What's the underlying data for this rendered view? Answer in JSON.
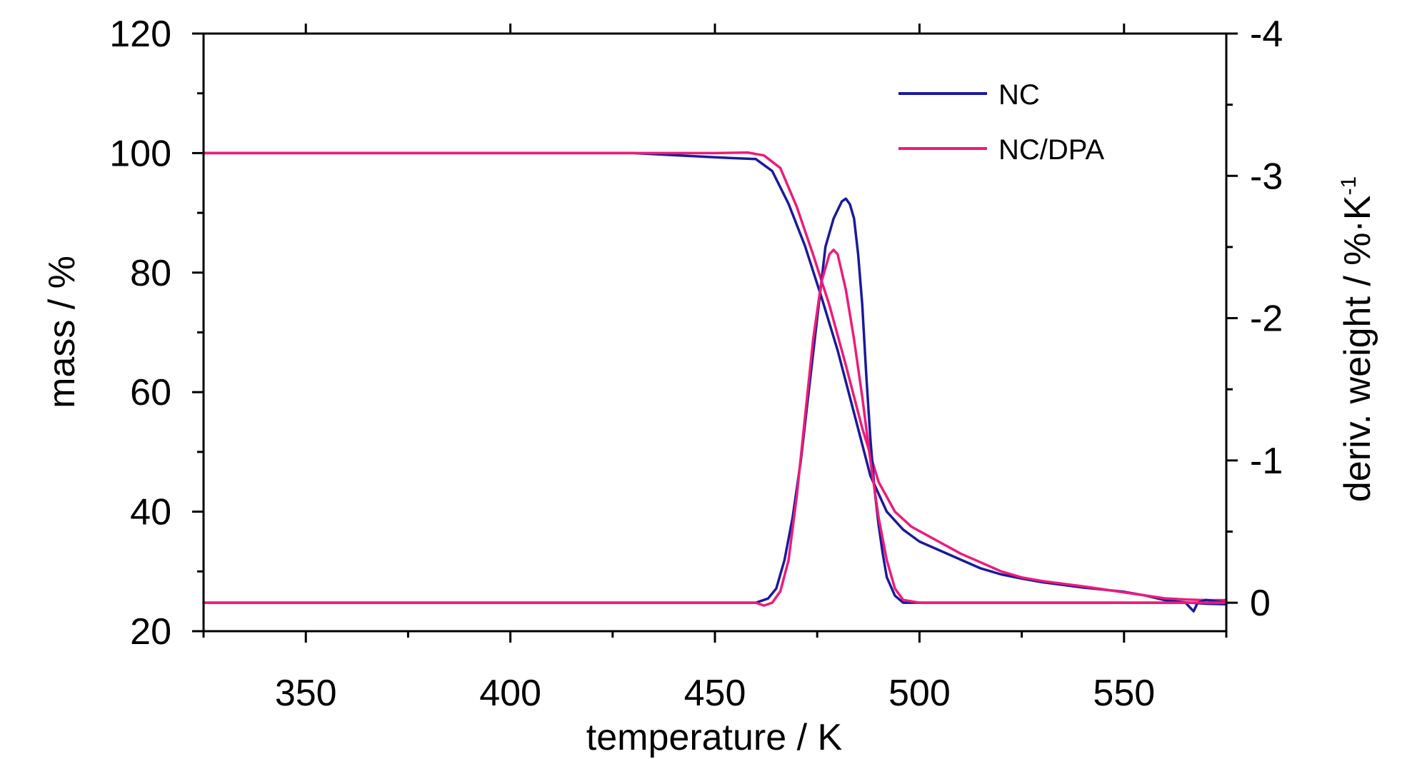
{
  "chart_data": {
    "type": "line",
    "xlabel": "temperature / K",
    "ylabel_left": "mass / %",
    "ylabel_right_main": "deriv. weight / %·K",
    "ylabel_right_sup": "-1",
    "xlim": [
      325,
      575
    ],
    "ylim_left": [
      20,
      120
    ],
    "ylim_right": [
      0.2,
      -4
    ],
    "x_ticks": [
      350,
      400,
      450,
      500,
      550
    ],
    "x_tick_labels": [
      "350",
      "400",
      "450",
      "500",
      "550"
    ],
    "y_left_ticks": [
      20,
      40,
      60,
      80,
      100,
      120
    ],
    "y_left_tick_labels": [
      "20",
      "40",
      "60",
      "80",
      "100",
      "120"
    ],
    "y_right_ticks": [
      0,
      -1,
      -2,
      -3,
      -4
    ],
    "y_right_tick_labels": [
      "0",
      "-1",
      "-2",
      "-3",
      "-4"
    ],
    "legend_position": "top-right",
    "series": [
      {
        "name": "NC",
        "color": "#1a1a9c",
        "axis": "left",
        "kind": "mass",
        "x": [
          325,
          350,
          400,
          430,
          450,
          460,
          464,
          468,
          472,
          476,
          480,
          484,
          488,
          492,
          496,
          500,
          505,
          510,
          515,
          520,
          525,
          530,
          540,
          550,
          555,
          560,
          565,
          570,
          575
        ],
        "y": [
          100,
          100,
          100,
          100,
          99.3,
          99.0,
          97.0,
          91.5,
          84.5,
          76.0,
          67.0,
          56.5,
          46.0,
          40.0,
          37.0,
          35.0,
          33.5,
          32.0,
          30.5,
          29.5,
          28.8,
          28.2,
          27.3,
          26.6,
          26.0,
          25.2,
          24.8,
          24.6,
          24.5
        ]
      },
      {
        "name": "NC/DPA",
        "color": "#ee1b7a",
        "axis": "left",
        "kind": "mass",
        "x": [
          325,
          350,
          400,
          430,
          450,
          458,
          462,
          466,
          470,
          474,
          478,
          482,
          486,
          490,
          494,
          498,
          502,
          506,
          510,
          515,
          520,
          525,
          530,
          540,
          550,
          560,
          565,
          570,
          575
        ],
        "y": [
          100,
          100,
          100,
          100,
          100,
          100.1,
          99.6,
          97.5,
          91.0,
          83.0,
          74.5,
          64.5,
          54.0,
          45.0,
          40.0,
          37.5,
          36.0,
          34.5,
          33.0,
          31.5,
          30.0,
          29.0,
          28.4,
          27.5,
          26.5,
          25.5,
          25.3,
          25.2,
          25.2
        ]
      },
      {
        "name": "NC",
        "color": "#1a1a9c",
        "axis": "right",
        "kind": "derivative",
        "x": [
          325,
          350,
          400,
          450,
          460,
          463,
          465,
          467,
          469,
          471,
          473,
          475,
          477,
          479,
          481,
          482,
          483,
          484,
          485,
          486,
          487,
          488,
          489,
          490,
          491,
          492,
          494,
          496,
          500,
          520,
          550,
          565,
          567,
          568,
          570,
          575
        ],
        "y": [
          0.0,
          0.0,
          0.0,
          0.0,
          0.0,
          -0.03,
          -0.1,
          -0.3,
          -0.6,
          -1.0,
          -1.5,
          -2.0,
          -2.5,
          -2.7,
          -2.82,
          -2.84,
          -2.8,
          -2.7,
          -2.45,
          -2.1,
          -1.6,
          -1.15,
          -0.8,
          -0.55,
          -0.35,
          -0.18,
          -0.05,
          0.0,
          0.0,
          0.0,
          0.0,
          0.0,
          0.06,
          0.0,
          -0.02,
          0.0
        ]
      },
      {
        "name": "NC/DPA",
        "color": "#ee1b7a",
        "axis": "right",
        "kind": "derivative",
        "x": [
          325,
          350,
          400,
          450,
          460,
          462,
          464,
          466,
          468,
          470,
          472,
          474,
          476,
          478,
          479,
          480,
          482,
          484,
          486,
          488,
          490,
          492,
          494,
          496,
          500,
          520,
          550,
          575
        ],
        "y": [
          0.0,
          0.0,
          0.0,
          0.0,
          0.0,
          0.02,
          0.0,
          -0.08,
          -0.3,
          -0.75,
          -1.3,
          -1.85,
          -2.25,
          -2.45,
          -2.48,
          -2.45,
          -2.2,
          -1.85,
          -1.45,
          -1.0,
          -0.6,
          -0.3,
          -0.1,
          -0.02,
          0.0,
          0.0,
          0.0,
          0.0
        ]
      }
    ]
  },
  "legend": {
    "items": [
      {
        "label": "NC",
        "color": "#1a1a9c"
      },
      {
        "label": "NC/DPA",
        "color": "#ee1b7a"
      }
    ]
  }
}
